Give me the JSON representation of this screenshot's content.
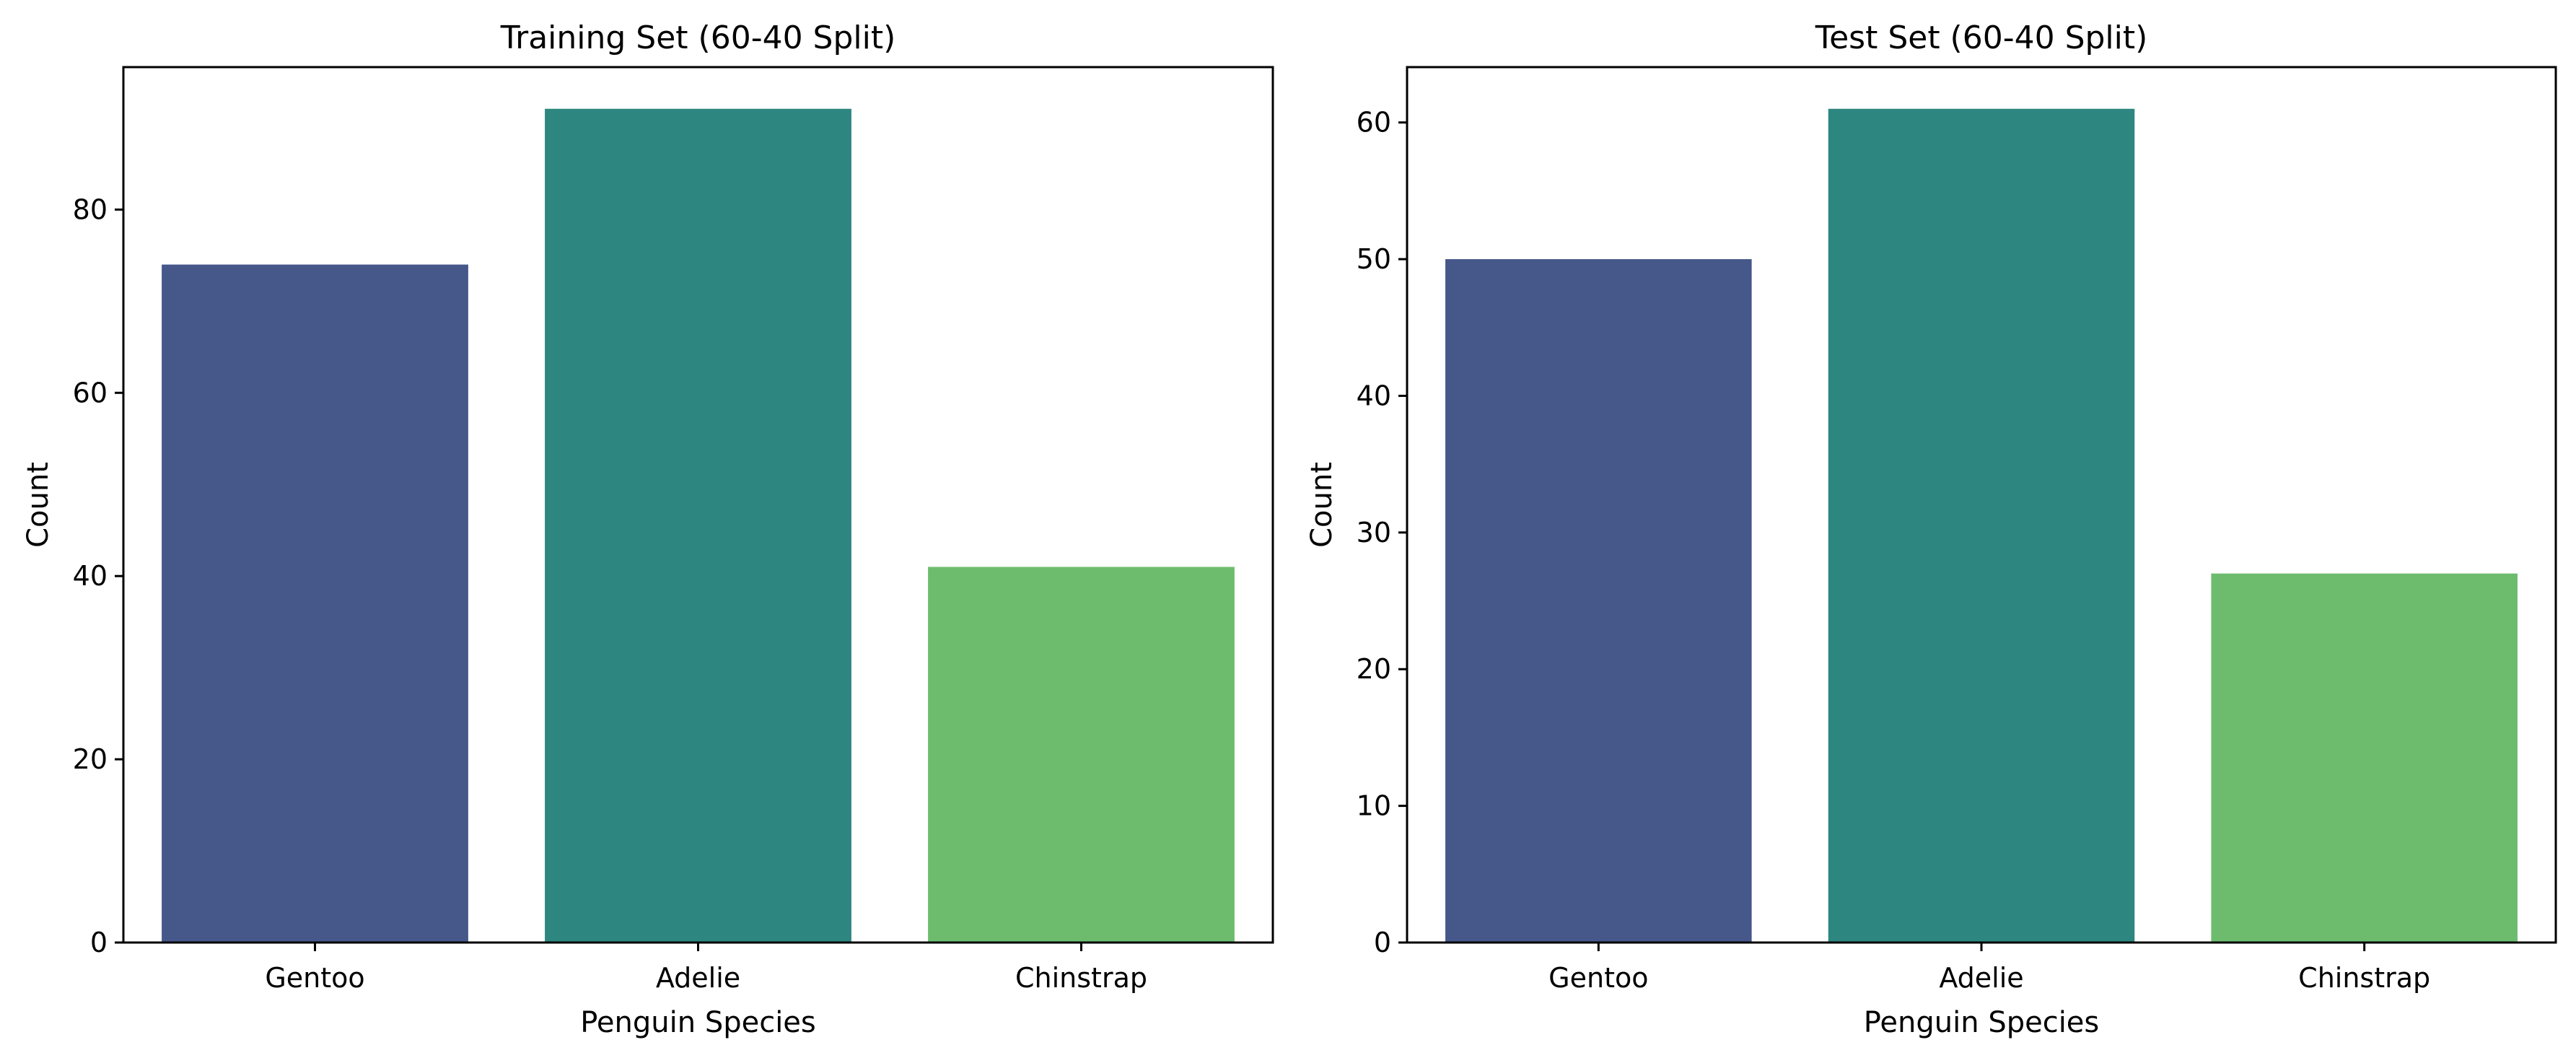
{
  "chart_data": [
    {
      "type": "bar",
      "title": "Training Set (60-40 Split)",
      "xlabel": "Penguin Species",
      "ylabel": "Count",
      "categories": [
        "Gentoo",
        "Adelie",
        "Chinstrap"
      ],
      "values": [
        74,
        91,
        41
      ],
      "colors": [
        "#46578a",
        "#2e8680",
        "#6dbc6e"
      ],
      "ylim": [
        0,
        95.55
      ],
      "yticks": [
        0,
        20,
        40,
        60,
        80
      ],
      "grid": false
    },
    {
      "type": "bar",
      "title": "Test Set (60-40 Split)",
      "xlabel": "Penguin Species",
      "ylabel": "Count",
      "categories": [
        "Gentoo",
        "Adelie",
        "Chinstrap"
      ],
      "values": [
        50,
        61,
        27
      ],
      "colors": [
        "#46578a",
        "#2e8680",
        "#6dbc6e"
      ],
      "ylim": [
        0,
        64.05
      ],
      "yticks": [
        0,
        10,
        20,
        30,
        40,
        50,
        60
      ],
      "grid": false
    }
  ]
}
